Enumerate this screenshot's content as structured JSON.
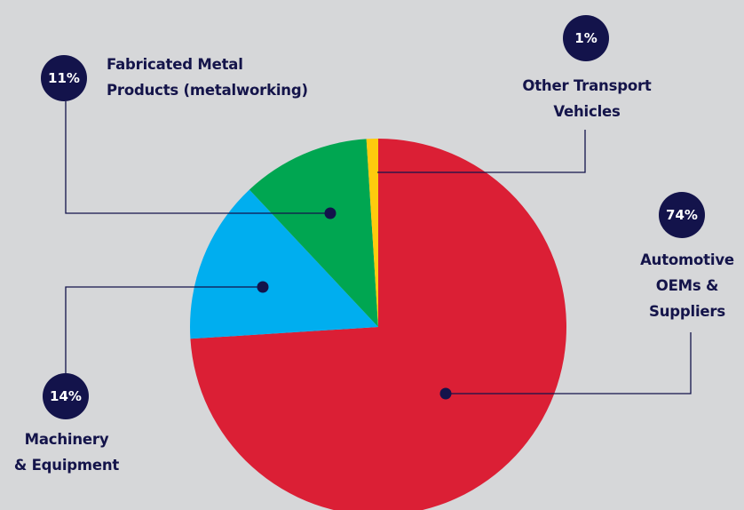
{
  "chart_data": {
    "type": "pie",
    "title": "",
    "slices": [
      {
        "label": "Automotive\nOEMs &\nSuppliers",
        "value": 74,
        "value_label": "74%",
        "color": "#db1f35"
      },
      {
        "label": "Machinery\n& Equipment",
        "value": 14,
        "value_label": "14%",
        "color": "#00aeef"
      },
      {
        "label": "Fabricated Metal\nProducts (metalworking)",
        "value": 11,
        "value_label": "11%",
        "color": "#00a651"
      },
      {
        "label": "Other Transport\nVehicles",
        "value": 1,
        "value_label": "1%",
        "color": "#fecb0d"
      }
    ]
  },
  "colors": {
    "background": "#d6d7d9",
    "label_text": "#14144a",
    "badge": "#13134b",
    "leader": "#13134b"
  }
}
